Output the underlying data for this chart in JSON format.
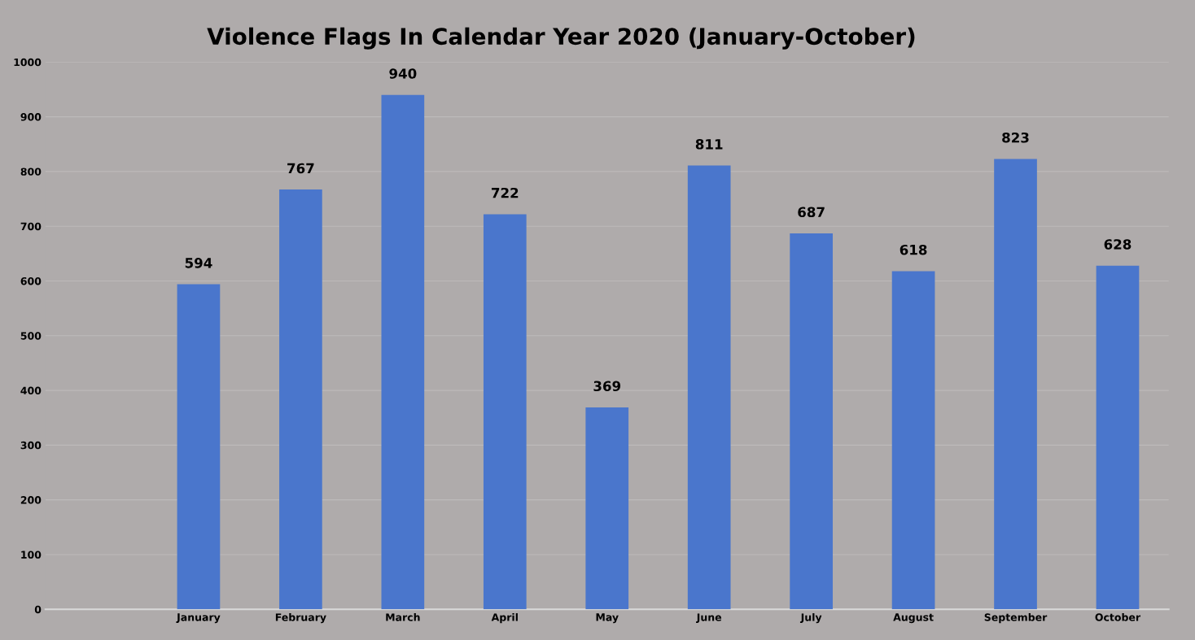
{
  "chart_data": {
    "type": "bar",
    "title": "Violence Flags In Calendar Year 2020 (January-October)",
    "categories": [
      null,
      "January",
      "February",
      "March",
      "April",
      "May",
      "June",
      "July",
      "August",
      "September",
      "October"
    ],
    "values": [
      null,
      594,
      767,
      940,
      722,
      369,
      811,
      687,
      618,
      823,
      628
    ],
    "color": "#4a76cc",
    "ylim": [
      0,
      1000
    ],
    "yticks": [
      0,
      100,
      200,
      300,
      400,
      500,
      600,
      700,
      800,
      900,
      1000
    ],
    "grid": "y",
    "data_labels": true
  }
}
